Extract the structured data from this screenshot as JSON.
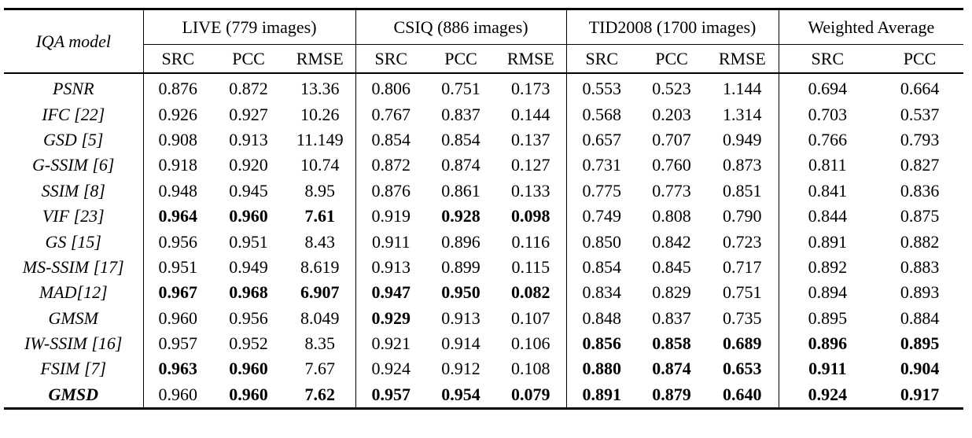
{
  "header": {
    "model_label": "IQA model",
    "groups": [
      {
        "label": "LIVE (779 images)",
        "subs": [
          "SRC",
          "PCC",
          "RMSE"
        ]
      },
      {
        "label": "CSIQ (886 images)",
        "subs": [
          "SRC",
          "PCC",
          "RMSE"
        ]
      },
      {
        "label": "TID2008 (1700 images)",
        "subs": [
          "SRC",
          "PCC",
          "RMSE"
        ]
      },
      {
        "label": "Weighted Average",
        "subs": [
          "SRC",
          "PCC"
        ]
      }
    ]
  },
  "rows": [
    {
      "model": "PSNR",
      "model_bold": false,
      "cells": [
        "0.876",
        "0.872",
        "13.36",
        "0.806",
        "0.751",
        "0.173",
        "0.553",
        "0.523",
        "1.144",
        "0.694",
        "0.664"
      ],
      "bold": [
        false,
        false,
        false,
        false,
        false,
        false,
        false,
        false,
        false,
        false,
        false
      ]
    },
    {
      "model": "IFC [22]",
      "model_bold": false,
      "cells": [
        "0.926",
        "0.927",
        "10.26",
        "0.767",
        "0.837",
        "0.144",
        "0.568",
        "0.203",
        "1.314",
        "0.703",
        "0.537"
      ],
      "bold": [
        false,
        false,
        false,
        false,
        false,
        false,
        false,
        false,
        false,
        false,
        false
      ]
    },
    {
      "model": "GSD [5]",
      "model_bold": false,
      "cells": [
        "0.908",
        "0.913",
        "11.149",
        "0.854",
        "0.854",
        "0.137",
        "0.657",
        "0.707",
        "0.949",
        "0.766",
        "0.793"
      ],
      "bold": [
        false,
        false,
        false,
        false,
        false,
        false,
        false,
        false,
        false,
        false,
        false
      ]
    },
    {
      "model": "G-SSIM [6]",
      "model_bold": false,
      "cells": [
        "0.918",
        "0.920",
        "10.74",
        "0.872",
        "0.874",
        "0.127",
        "0.731",
        "0.760",
        "0.873",
        "0.811",
        "0.827"
      ],
      "bold": [
        false,
        false,
        false,
        false,
        false,
        false,
        false,
        false,
        false,
        false,
        false
      ]
    },
    {
      "model": "SSIM [8]",
      "model_bold": false,
      "cells": [
        "0.948",
        "0.945",
        "8.95",
        "0.876",
        "0.861",
        "0.133",
        "0.775",
        "0.773",
        "0.851",
        "0.841",
        "0.836"
      ],
      "bold": [
        false,
        false,
        false,
        false,
        false,
        false,
        false,
        false,
        false,
        false,
        false
      ]
    },
    {
      "model": "VIF [23]",
      "model_bold": false,
      "cells": [
        "0.964",
        "0.960",
        "7.61",
        "0.919",
        "0.928",
        "0.098",
        "0.749",
        "0.808",
        "0.790",
        "0.844",
        "0.875"
      ],
      "bold": [
        true,
        true,
        true,
        false,
        true,
        true,
        false,
        false,
        false,
        false,
        false
      ]
    },
    {
      "model": "GS [15]",
      "model_bold": false,
      "cells": [
        "0.956",
        "0.951",
        "8.43",
        "0.911",
        "0.896",
        "0.116",
        "0.850",
        "0.842",
        "0.723",
        "0.891",
        "0.882"
      ],
      "bold": [
        false,
        false,
        false,
        false,
        false,
        false,
        false,
        false,
        false,
        false,
        false
      ]
    },
    {
      "model": "MS-SSIM [17]",
      "model_bold": false,
      "cells": [
        "0.951",
        "0.949",
        "8.619",
        "0.913",
        "0.899",
        "0.115",
        "0.854",
        "0.845",
        "0.717",
        "0.892",
        "0.883"
      ],
      "bold": [
        false,
        false,
        false,
        false,
        false,
        false,
        false,
        false,
        false,
        false,
        false
      ]
    },
    {
      "model": "MAD[12]",
      "model_bold": false,
      "cells": [
        "0.967",
        "0.968",
        "6.907",
        "0.947",
        "0.950",
        "0.082",
        "0.834",
        "0.829",
        "0.751",
        "0.894",
        "0.893"
      ],
      "bold": [
        true,
        true,
        true,
        true,
        true,
        true,
        false,
        false,
        false,
        false,
        false
      ]
    },
    {
      "model": "GMSM",
      "model_bold": false,
      "cells": [
        "0.960",
        "0.956",
        "8.049",
        "0.929",
        "0.913",
        "0.107",
        "0.848",
        "0.837",
        "0.735",
        "0.895",
        "0.884"
      ],
      "bold": [
        false,
        false,
        false,
        true,
        false,
        false,
        false,
        false,
        false,
        false,
        false
      ]
    },
    {
      "model": "IW-SSIM [16]",
      "model_bold": false,
      "cells": [
        "0.957",
        "0.952",
        "8.35",
        "0.921",
        "0.914",
        "0.106",
        "0.856",
        "0.858",
        "0.689",
        "0.896",
        "0.895"
      ],
      "bold": [
        false,
        false,
        false,
        false,
        false,
        false,
        true,
        true,
        true,
        true,
        true
      ]
    },
    {
      "model": "FSIM [7]",
      "model_bold": false,
      "cells": [
        "0.963",
        "0.960",
        "7.67",
        "0.924",
        "0.912",
        "0.108",
        "0.880",
        "0.874",
        "0.653",
        "0.911",
        "0.904"
      ],
      "bold": [
        true,
        true,
        false,
        false,
        false,
        false,
        true,
        true,
        true,
        true,
        true
      ]
    },
    {
      "model": "GMSD",
      "model_bold": true,
      "cells": [
        "0.960",
        "0.960",
        "7.62",
        "0.957",
        "0.954",
        "0.079",
        "0.891",
        "0.879",
        "0.640",
        "0.924",
        "0.917"
      ],
      "bold": [
        false,
        true,
        true,
        true,
        true,
        true,
        true,
        true,
        true,
        true,
        true
      ]
    }
  ]
}
